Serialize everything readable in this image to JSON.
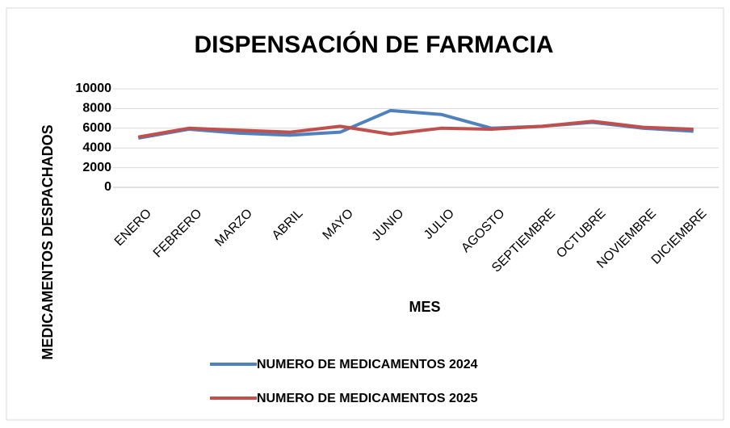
{
  "chart_data": {
    "type": "line",
    "title": "DISPENSACIÓN DE FARMACIA",
    "x_label": "MES",
    "y_label": "MEDICAMENTOS DESPACHADOS",
    "categories": [
      "ENERO",
      "FEBRERO",
      "MARZO",
      "ABRIL",
      "MAYO",
      "JUNIO",
      "JULIO",
      "AGOSTO",
      "SEPTIEMBRE",
      "OCTUBRE",
      "NOVIEMBRE",
      "DICIEMBRE"
    ],
    "series": [
      {
        "name": "NUMERO DE MEDICAMENTOS 2024",
        "color": "#4f81bd",
        "values": [
          5000,
          5900,
          5500,
          5300,
          5600,
          7800,
          7400,
          6000,
          6200,
          6600,
          6000,
          5700
        ]
      },
      {
        "name": "NUMERO DE MEDICAMENTOS 2025",
        "color": "#c0504d",
        "values": [
          5100,
          6000,
          5800,
          5600,
          6200,
          5400,
          6000,
          5900,
          6200,
          6700,
          6100,
          5900
        ]
      }
    ],
    "ylim": [
      0,
      10000
    ],
    "yticks": [
      0,
      2000,
      4000,
      6000,
      8000,
      10000
    ],
    "grid": true,
    "legend": "bottom"
  }
}
